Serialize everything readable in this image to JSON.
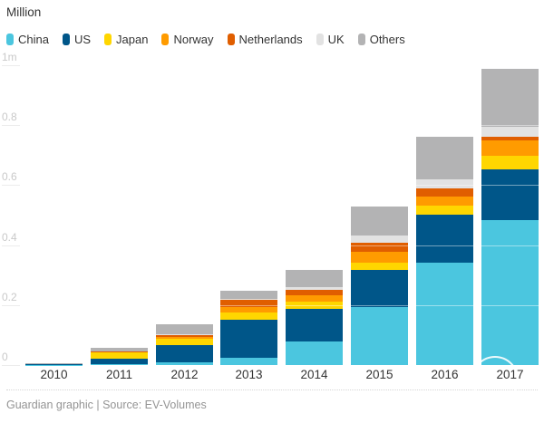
{
  "header": {
    "unit_label": "Million"
  },
  "legend": [
    {
      "label": "China",
      "color": "#4bc6df"
    },
    {
      "label": "US",
      "color": "#005689"
    },
    {
      "label": "Japan",
      "color": "#ffd600"
    },
    {
      "label": "Norway",
      "color": "#ff9b00"
    },
    {
      "label": "Netherlands",
      "color": "#e05e00"
    },
    {
      "label": "UK",
      "color": "#e2e2e2"
    },
    {
      "label": "Others",
      "color": "#b3b3b4"
    }
  ],
  "chart_data": {
    "type": "bar",
    "stacked": true,
    "title": "Million",
    "ylabel": "Million",
    "ylim": [
      0,
      1
    ],
    "grid": "horizontal-faint",
    "legend_position": "top",
    "categories": [
      "2010",
      "2011",
      "2012",
      "2013",
      "2014",
      "2015",
      "2016",
      "2017"
    ],
    "yticks": [
      {
        "label": "1m",
        "value": 1.0
      },
      {
        "label": "0.8",
        "value": 0.8
      },
      {
        "label": "0.6",
        "value": 0.6
      },
      {
        "label": "0.4",
        "value": 0.4
      },
      {
        "label": "0.2",
        "value": 0.2
      },
      {
        "label": "0",
        "value": 0.0
      }
    ],
    "series": [
      {
        "name": "China",
        "color": "#4bc6df",
        "values": [
          0.001,
          0.003,
          0.009,
          0.024,
          0.079,
          0.193,
          0.341,
          0.483
        ]
      },
      {
        "name": "US",
        "color": "#005689",
        "values": [
          0.001,
          0.018,
          0.057,
          0.127,
          0.109,
          0.124,
          0.16,
          0.169
        ]
      },
      {
        "name": "Japan",
        "color": "#ffd600",
        "values": [
          0.002,
          0.021,
          0.021,
          0.024,
          0.024,
          0.024,
          0.03,
          0.045
        ]
      },
      {
        "name": "Norway",
        "color": "#ff9b00",
        "values": [
          0.0,
          0.001,
          0.006,
          0.018,
          0.021,
          0.036,
          0.03,
          0.051
        ]
      },
      {
        "name": "Netherlands",
        "color": "#e05e00",
        "values": [
          0.0,
          0.001,
          0.006,
          0.024,
          0.018,
          0.03,
          0.027,
          0.012
        ]
      },
      {
        "name": "UK",
        "color": "#e2e2e2",
        "values": [
          0.0,
          0.001,
          0.003,
          0.003,
          0.009,
          0.024,
          0.033,
          0.036
        ]
      },
      {
        "name": "Others",
        "color": "#b3b3b4",
        "values": [
          0.001,
          0.012,
          0.033,
          0.027,
          0.057,
          0.097,
          0.142,
          0.193
        ]
      }
    ]
  },
  "footer": {
    "text": "Guardian graphic | Source: EV-Volumes"
  }
}
